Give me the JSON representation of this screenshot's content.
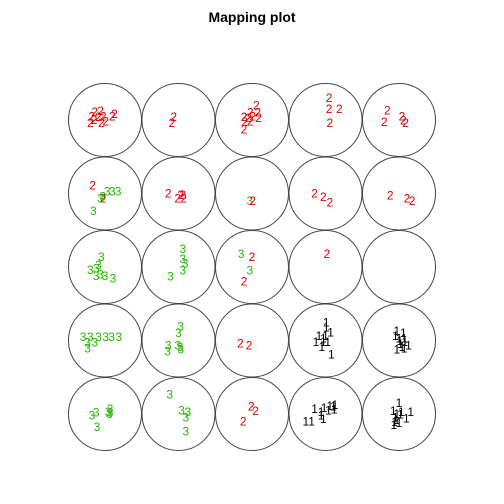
{
  "chart_data": {
    "type": "scatter",
    "title": "Mapping plot",
    "grid": {
      "rows": 5,
      "cols": 5,
      "cell_shape": "circle"
    },
    "class_colors": {
      "1": "#000000",
      "2": "#DF0000",
      "3": "#22BB00"
    },
    "cells": [
      {
        "row": 0,
        "col": 0,
        "labels": [
          {
            "c": "2",
            "x": -0.28,
            "y": -0.22
          },
          {
            "c": "2",
            "x": -0.12,
            "y": -0.24
          },
          {
            "c": "2",
            "x": -0.36,
            "y": -0.1
          },
          {
            "c": "2",
            "x": -0.18,
            "y": -0.08
          },
          {
            "c": "2",
            "x": -0.05,
            "y": -0.1
          },
          {
            "c": "2",
            "x": -0.3,
            "y": 0.0
          },
          {
            "c": "2",
            "x": 0.2,
            "y": -0.1
          },
          {
            "c": "2",
            "x": 0.26,
            "y": -0.16
          },
          {
            "c": "2",
            "x": -0.4,
            "y": 0.08
          },
          {
            "c": "2",
            "x": -0.1,
            "y": 0.08
          },
          {
            "c": "2",
            "x": 0.02,
            "y": 0.04
          }
        ]
      },
      {
        "row": 0,
        "col": 1,
        "labels": [
          {
            "c": "2",
            "x": -0.13,
            "y": -0.08
          },
          {
            "c": "2",
            "x": -0.18,
            "y": 0.08
          }
        ]
      },
      {
        "row": 0,
        "col": 2,
        "labels": [
          {
            "c": "2",
            "x": 0.12,
            "y": -0.4
          },
          {
            "c": "2",
            "x": -0.05,
            "y": -0.2
          },
          {
            "c": "2",
            "x": 0.16,
            "y": -0.2
          },
          {
            "c": "2",
            "x": -0.22,
            "y": -0.08
          },
          {
            "c": "2",
            "x": -0.1,
            "y": -0.06
          },
          {
            "c": "2",
            "x": 0.02,
            "y": -0.1
          },
          {
            "c": "2",
            "x": 0.18,
            "y": -0.06
          },
          {
            "c": "2",
            "x": -0.2,
            "y": 0.06
          },
          {
            "c": "2",
            "x": -0.05,
            "y": 0.04
          },
          {
            "c": "2",
            "x": -0.22,
            "y": 0.26
          }
        ]
      },
      {
        "row": 0,
        "col": 3,
        "labels": [
          {
            "c": "2",
            "x": 0.1,
            "y": -0.6
          },
          {
            "c": "2",
            "x": 0.1,
            "y": -0.3
          },
          {
            "c": "2",
            "x": 0.38,
            "y": -0.3
          },
          {
            "c": "2",
            "x": 0.12,
            "y": 0.08
          }
        ]
      },
      {
        "row": 0,
        "col": 4,
        "labels": [
          {
            "c": "2",
            "x": -0.32,
            "y": -0.26
          },
          {
            "c": "2",
            "x": 0.08,
            "y": -0.1
          },
          {
            "c": "2",
            "x": -0.4,
            "y": 0.06
          },
          {
            "c": "2",
            "x": 0.12,
            "y": 0.02
          },
          {
            "c": "2",
            "x": 0.18,
            "y": 0.08
          }
        ]
      },
      {
        "row": 1,
        "col": 0,
        "labels": [
          {
            "c": "2",
            "x": -0.34,
            "y": -0.22
          },
          {
            "c": "3",
            "x": 0.06,
            "y": -0.06
          },
          {
            "c": "3",
            "x": 0.2,
            "y": -0.06
          },
          {
            "c": "3",
            "x": 0.36,
            "y": -0.06
          },
          {
            "c": "3",
            "x": -0.06,
            "y": 0.08
          },
          {
            "c": "2",
            "x": -0.06,
            "y": 0.14
          },
          {
            "c": "3",
            "x": -0.12,
            "y": 0.14
          },
          {
            "c": "3",
            "x": -0.32,
            "y": 0.48
          }
        ]
      },
      {
        "row": 1,
        "col": 1,
        "labels": [
          {
            "c": "2",
            "x": -0.28,
            "y": -0.0
          },
          {
            "c": "2",
            "x": 0.06,
            "y": 0.04
          },
          {
            "c": "2",
            "x": -0.02,
            "y": 0.14
          },
          {
            "c": "2",
            "x": 0.14,
            "y": 0.14
          },
          {
            "c": "2",
            "x": 0.12,
            "y": 0.04
          }
        ]
      },
      {
        "row": 1,
        "col": 2,
        "labels": [
          {
            "c": "3",
            "x": -0.06,
            "y": 0.2
          },
          {
            "c": "2",
            "x": 0.02,
            "y": 0.2
          }
        ]
      },
      {
        "row": 1,
        "col": 3,
        "labels": [
          {
            "c": "2",
            "x": -0.3,
            "y": 0.0
          },
          {
            "c": "2",
            "x": -0.06,
            "y": 0.1
          },
          {
            "c": "2",
            "x": 0.12,
            "y": 0.24
          }
        ]
      },
      {
        "row": 1,
        "col": 4,
        "labels": [
          {
            "c": "2",
            "x": -0.24,
            "y": 0.06
          },
          {
            "c": "2",
            "x": 0.22,
            "y": 0.14
          },
          {
            "c": "2",
            "x": 0.36,
            "y": 0.2
          }
        ]
      },
      {
        "row": 2,
        "col": 0,
        "labels": [
          {
            "c": "3",
            "x": -0.1,
            "y": -0.28
          },
          {
            "c": "3",
            "x": -0.18,
            "y": -0.06
          },
          {
            "c": "3",
            "x": -0.4,
            "y": 0.08
          },
          {
            "c": "3",
            "x": -0.24,
            "y": 0.04
          },
          {
            "c": "3",
            "x": -0.12,
            "y": 0.2
          },
          {
            "c": "3",
            "x": -0.24,
            "y": 0.24
          },
          {
            "c": "3",
            "x": 0.0,
            "y": 0.24
          },
          {
            "c": "3",
            "x": 0.22,
            "y": 0.32
          }
        ]
      },
      {
        "row": 2,
        "col": 1,
        "labels": [
          {
            "c": "3",
            "x": 0.12,
            "y": -0.5
          },
          {
            "c": "3",
            "x": 0.12,
            "y": -0.22
          },
          {
            "c": "3",
            "x": 0.18,
            "y": -0.1
          },
          {
            "c": "3",
            "x": 0.12,
            "y": 0.1
          },
          {
            "c": "3",
            "x": -0.22,
            "y": 0.26
          }
        ]
      },
      {
        "row": 2,
        "col": 2,
        "labels": [
          {
            "c": "3",
            "x": -0.3,
            "y": -0.36
          },
          {
            "c": "2",
            "x": 0.0,
            "y": -0.28
          },
          {
            "c": "3",
            "x": -0.06,
            "y": 0.1
          },
          {
            "c": "2",
            "x": -0.22,
            "y": 0.4
          }
        ]
      },
      {
        "row": 2,
        "col": 3,
        "labels": [
          {
            "c": "2",
            "x": 0.04,
            "y": -0.36
          }
        ]
      },
      {
        "row": 2,
        "col": 4,
        "labels": []
      },
      {
        "row": 3,
        "col": 0,
        "labels": [
          {
            "c": "3",
            "x": -0.6,
            "y": -0.1
          },
          {
            "c": "3",
            "x": -0.4,
            "y": -0.1
          },
          {
            "c": "3",
            "x": -0.18,
            "y": -0.1
          },
          {
            "c": "3",
            "x": 0.02,
            "y": -0.1
          },
          {
            "c": "3",
            "x": 0.18,
            "y": -0.1
          },
          {
            "c": "3",
            "x": 0.38,
            "y": -0.1
          },
          {
            "c": "3",
            "x": -0.48,
            "y": 0.06
          },
          {
            "c": "3",
            "x": -0.28,
            "y": 0.06
          },
          {
            "c": "3",
            "x": -0.48,
            "y": 0.22
          }
        ]
      },
      {
        "row": 3,
        "col": 1,
        "labels": [
          {
            "c": "3",
            "x": 0.06,
            "y": -0.38
          },
          {
            "c": "3",
            "x": 0.0,
            "y": -0.2
          },
          {
            "c": "3",
            "x": -0.28,
            "y": 0.14
          },
          {
            "c": "3",
            "x": -0.02,
            "y": 0.14
          },
          {
            "c": "3",
            "x": 0.04,
            "y": 0.18
          },
          {
            "c": "3",
            "x": 0.06,
            "y": 0.24
          },
          {
            "c": "3",
            "x": -0.3,
            "y": 0.3
          }
        ]
      },
      {
        "row": 3,
        "col": 2,
        "labels": [
          {
            "c": "2",
            "x": -0.32,
            "y": 0.08
          },
          {
            "c": "2",
            "x": -0.08,
            "y": 0.14
          }
        ]
      },
      {
        "row": 3,
        "col": 3,
        "labels": [
          {
            "c": "1",
            "x": 0.02,
            "y": -0.5
          },
          {
            "c": "1",
            "x": 0.02,
            "y": -0.36
          },
          {
            "c": "1",
            "x": 0.14,
            "y": -0.22
          },
          {
            "c": "1",
            "x": 0.0,
            "y": -0.12
          },
          {
            "c": "1",
            "x": -0.18,
            "y": -0.12
          },
          {
            "c": "1",
            "x": -0.06,
            "y": -0.06
          },
          {
            "c": "1",
            "x": -0.26,
            "y": 0.04
          },
          {
            "c": "1",
            "x": -0.06,
            "y": 0.04
          },
          {
            "c": "1",
            "x": 0.06,
            "y": 0.04
          },
          {
            "c": "1",
            "x": -0.1,
            "y": 0.18
          },
          {
            "c": "1",
            "x": 0.16,
            "y": 0.38
          }
        ]
      },
      {
        "row": 3,
        "col": 4,
        "labels": [
          {
            "c": "1",
            "x": -0.06,
            "y": -0.26
          },
          {
            "c": "1",
            "x": 0.12,
            "y": -0.2
          },
          {
            "c": "1",
            "x": -0.1,
            "y": -0.12
          },
          {
            "c": "1",
            "x": 0.0,
            "y": -0.06
          },
          {
            "c": "1",
            "x": 0.14,
            "y": -0.06
          },
          {
            "c": "1",
            "x": 0.02,
            "y": 0.02
          },
          {
            "c": "1",
            "x": 0.16,
            "y": 0.04
          },
          {
            "c": "1",
            "x": 0.04,
            "y": 0.1
          },
          {
            "c": "1",
            "x": 0.26,
            "y": 0.14
          },
          {
            "c": "1",
            "x": 0.08,
            "y": 0.18
          },
          {
            "c": "1",
            "x": -0.06,
            "y": 0.24
          },
          {
            "c": "1",
            "x": 0.14,
            "y": 0.22
          }
        ]
      },
      {
        "row": 4,
        "col": 0,
        "labels": [
          {
            "c": "3",
            "x": 0.14,
            "y": -0.14
          },
          {
            "c": "3",
            "x": -0.24,
            "y": -0.04
          },
          {
            "c": "3",
            "x": 0.08,
            "y": -0.06
          },
          {
            "c": "3",
            "x": 0.12,
            "y": -0.0
          },
          {
            "c": "3",
            "x": 0.14,
            "y": -0.04
          },
          {
            "c": "3",
            "x": -0.36,
            "y": 0.04
          },
          {
            "c": "3",
            "x": -0.22,
            "y": 0.36
          }
        ]
      },
      {
        "row": 4,
        "col": 1,
        "labels": [
          {
            "c": "3",
            "x": -0.24,
            "y": -0.54
          },
          {
            "c": "3",
            "x": 0.08,
            "y": -0.1
          },
          {
            "c": "3",
            "x": 0.26,
            "y": -0.06
          },
          {
            "c": "3",
            "x": 0.2,
            "y": 0.1
          },
          {
            "c": "3",
            "x": 0.2,
            "y": 0.48
          }
        ]
      },
      {
        "row": 4,
        "col": 2,
        "labels": [
          {
            "c": "2",
            "x": -0.02,
            "y": -0.2
          },
          {
            "c": "2",
            "x": 0.1,
            "y": -0.08
          },
          {
            "c": "2",
            "x": -0.24,
            "y": 0.2
          }
        ]
      },
      {
        "row": 4,
        "col": 3,
        "labels": [
          {
            "c": "1",
            "x": -0.3,
            "y": -0.14
          },
          {
            "c": "1",
            "x": -0.04,
            "y": -0.16
          },
          {
            "c": "1",
            "x": 0.12,
            "y": -0.22
          },
          {
            "c": "1",
            "x": 0.22,
            "y": -0.2
          },
          {
            "c": "1",
            "x": 0.26,
            "y": -0.24
          },
          {
            "c": "1",
            "x": 0.08,
            "y": -0.1
          },
          {
            "c": "1",
            "x": 0.24,
            "y": -0.12
          },
          {
            "c": "1",
            "x": -0.12,
            "y": -0.06
          },
          {
            "c": "1",
            "x": -0.54,
            "y": 0.2
          },
          {
            "c": "1",
            "x": -0.38,
            "y": 0.2
          },
          {
            "c": "1",
            "x": -0.06,
            "y": 0.14
          },
          {
            "c": "1",
            "x": -0.12,
            "y": 0.04
          }
        ]
      },
      {
        "row": 4,
        "col": 4,
        "labels": [
          {
            "c": "1",
            "x": 0.0,
            "y": -0.3
          },
          {
            "c": "1",
            "x": -0.16,
            "y": -0.08
          },
          {
            "c": "1",
            "x": 0.06,
            "y": -0.06
          },
          {
            "c": "1",
            "x": -0.06,
            "y": 0.0
          },
          {
            "c": "1",
            "x": 0.04,
            "y": 0.02
          },
          {
            "c": "1",
            "x": 0.32,
            "y": -0.06
          },
          {
            "c": "1",
            "x": -0.1,
            "y": 0.1
          },
          {
            "c": "1",
            "x": -0.06,
            "y": 0.16
          },
          {
            "c": "1",
            "x": -0.12,
            "y": 0.22
          },
          {
            "c": "1",
            "x": 0.0,
            "y": 0.24
          },
          {
            "c": "1",
            "x": -0.14,
            "y": 0.3
          },
          {
            "c": "1",
            "x": 0.2,
            "y": 0.12
          }
        ]
      }
    ]
  }
}
